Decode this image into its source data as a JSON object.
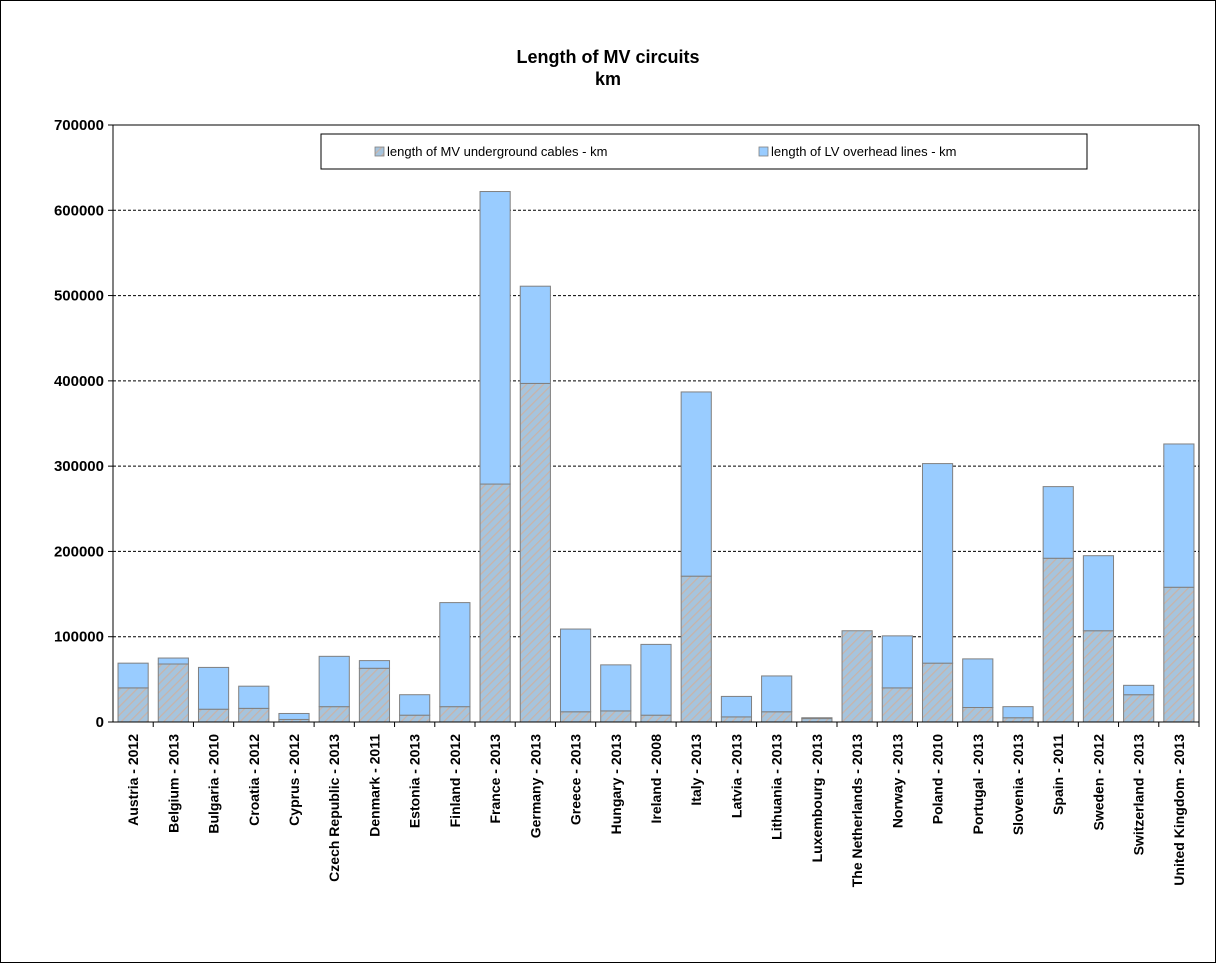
{
  "chart_data": {
    "type": "bar",
    "stacked": true,
    "title": "Length of MV circuits",
    "subtitle": "km",
    "xlabel": "",
    "ylabel": "",
    "ylim": [
      0,
      700000
    ],
    "yticks": [
      "0",
      "100000",
      "200000",
      "300000",
      "400000",
      "500000",
      "600000",
      "700000"
    ],
    "grid": true,
    "legend_position": "top",
    "categories": [
      "Austria - 2012",
      "Belgium - 2013",
      "Bulgaria - 2010",
      "Croatia - 2012",
      "Cyprus - 2012",
      "Czech Republic - 2013",
      "Denmark - 2011",
      "Estonia - 2013",
      "Finland - 2012",
      "France - 2013",
      "Germany - 2013",
      "Greece - 2013",
      "Hungary - 2013",
      "Ireland - 2008",
      "Italy - 2013",
      "Latvia - 2013",
      "Lithuania - 2013",
      "Luxembourg - 2013",
      "The Netherlands - 2013",
      "Norway - 2013",
      "Poland - 2010",
      "Portugal - 2013",
      "Slovenia - 2013",
      "Spain - 2011",
      "Sweden - 2012",
      "Switzerland - 2013",
      "United Kingdom - 2013"
    ],
    "series": [
      {
        "name": "length of MV underground cables - km",
        "color": "#a6c4dd",
        "pattern": "hatch",
        "values": [
          40000,
          68000,
          15000,
          16000,
          3000,
          18000,
          63000,
          8000,
          18000,
          279000,
          397000,
          12000,
          13000,
          8000,
          171000,
          6000,
          12000,
          4000,
          107000,
          40000,
          69000,
          17000,
          5000,
          192000,
          107000,
          32000,
          158000
        ]
      },
      {
        "name": "length of LV overhead lines - km",
        "color": "#99ccff",
        "pattern": "solid",
        "values": [
          29000,
          7000,
          49000,
          26000,
          7000,
          59000,
          9000,
          24000,
          122000,
          343000,
          114000,
          97000,
          54000,
          83000,
          216000,
          24000,
          42000,
          1000,
          0,
          61000,
          234000,
          57000,
          13000,
          84000,
          88000,
          11000,
          168000
        ]
      }
    ]
  }
}
